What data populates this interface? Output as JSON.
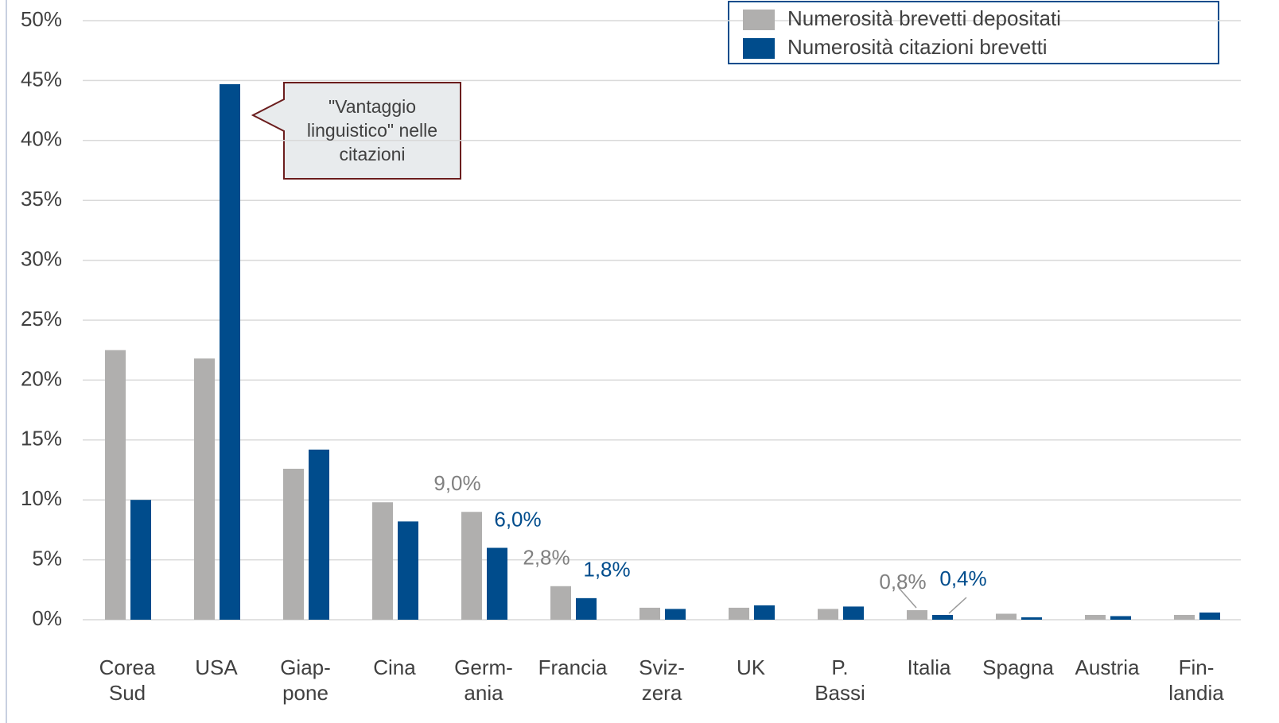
{
  "chart_data": {
    "type": "bar",
    "categories": [
      "Corea\nSud",
      "USA",
      "Giap-\npone",
      "Cina",
      "Germ-\nania",
      "Francia",
      "Sviz-\nzera",
      "UK",
      "P.\nBassi",
      "Italia",
      "Spagna",
      "Austria",
      "Fin-\nlandia"
    ],
    "series": [
      {
        "name": "Numerosità brevetti depositati",
        "color": "#b0afae",
        "values": [
          22.5,
          21.8,
          12.6,
          9.8,
          9.0,
          2.8,
          1.0,
          1.0,
          0.9,
          0.8,
          0.5,
          0.4,
          0.4
        ],
        "value_labels": [
          null,
          null,
          null,
          null,
          "9,0%",
          "2,8%",
          null,
          null,
          null,
          "0,8%",
          null,
          null,
          null
        ]
      },
      {
        "name": "Numerosità citazioni brevetti",
        "color": "#004c8c",
        "values": [
          10.0,
          44.7,
          14.2,
          8.2,
          6.0,
          1.8,
          0.9,
          1.2,
          1.1,
          0.4,
          0.2,
          0.3,
          0.6
        ],
        "value_labels": [
          null,
          null,
          null,
          null,
          "6,0%",
          "1,8%",
          null,
          null,
          null,
          "0,4%",
          null,
          null,
          null
        ]
      }
    ],
    "ylim": [
      0,
      50
    ],
    "yticks": [
      {
        "value": 0,
        "label": "0%"
      },
      {
        "value": 5,
        "label": "5%"
      },
      {
        "value": 10,
        "label": "10%"
      },
      {
        "value": 15,
        "label": "15%"
      },
      {
        "value": 20,
        "label": "20%"
      },
      {
        "value": 25,
        "label": "25%"
      },
      {
        "value": 30,
        "label": "30%"
      },
      {
        "value": 35,
        "label": "35%"
      },
      {
        "value": 40,
        "label": "40%"
      },
      {
        "value": 45,
        "label": "45%"
      },
      {
        "value": 50,
        "label": "50%"
      }
    ],
    "grid": true,
    "legend": "upper right",
    "annotations": [
      {
        "lines": [
          "\"Vantaggio",
          "linguistico\" nelle",
          "citazioni"
        ]
      }
    ]
  }
}
